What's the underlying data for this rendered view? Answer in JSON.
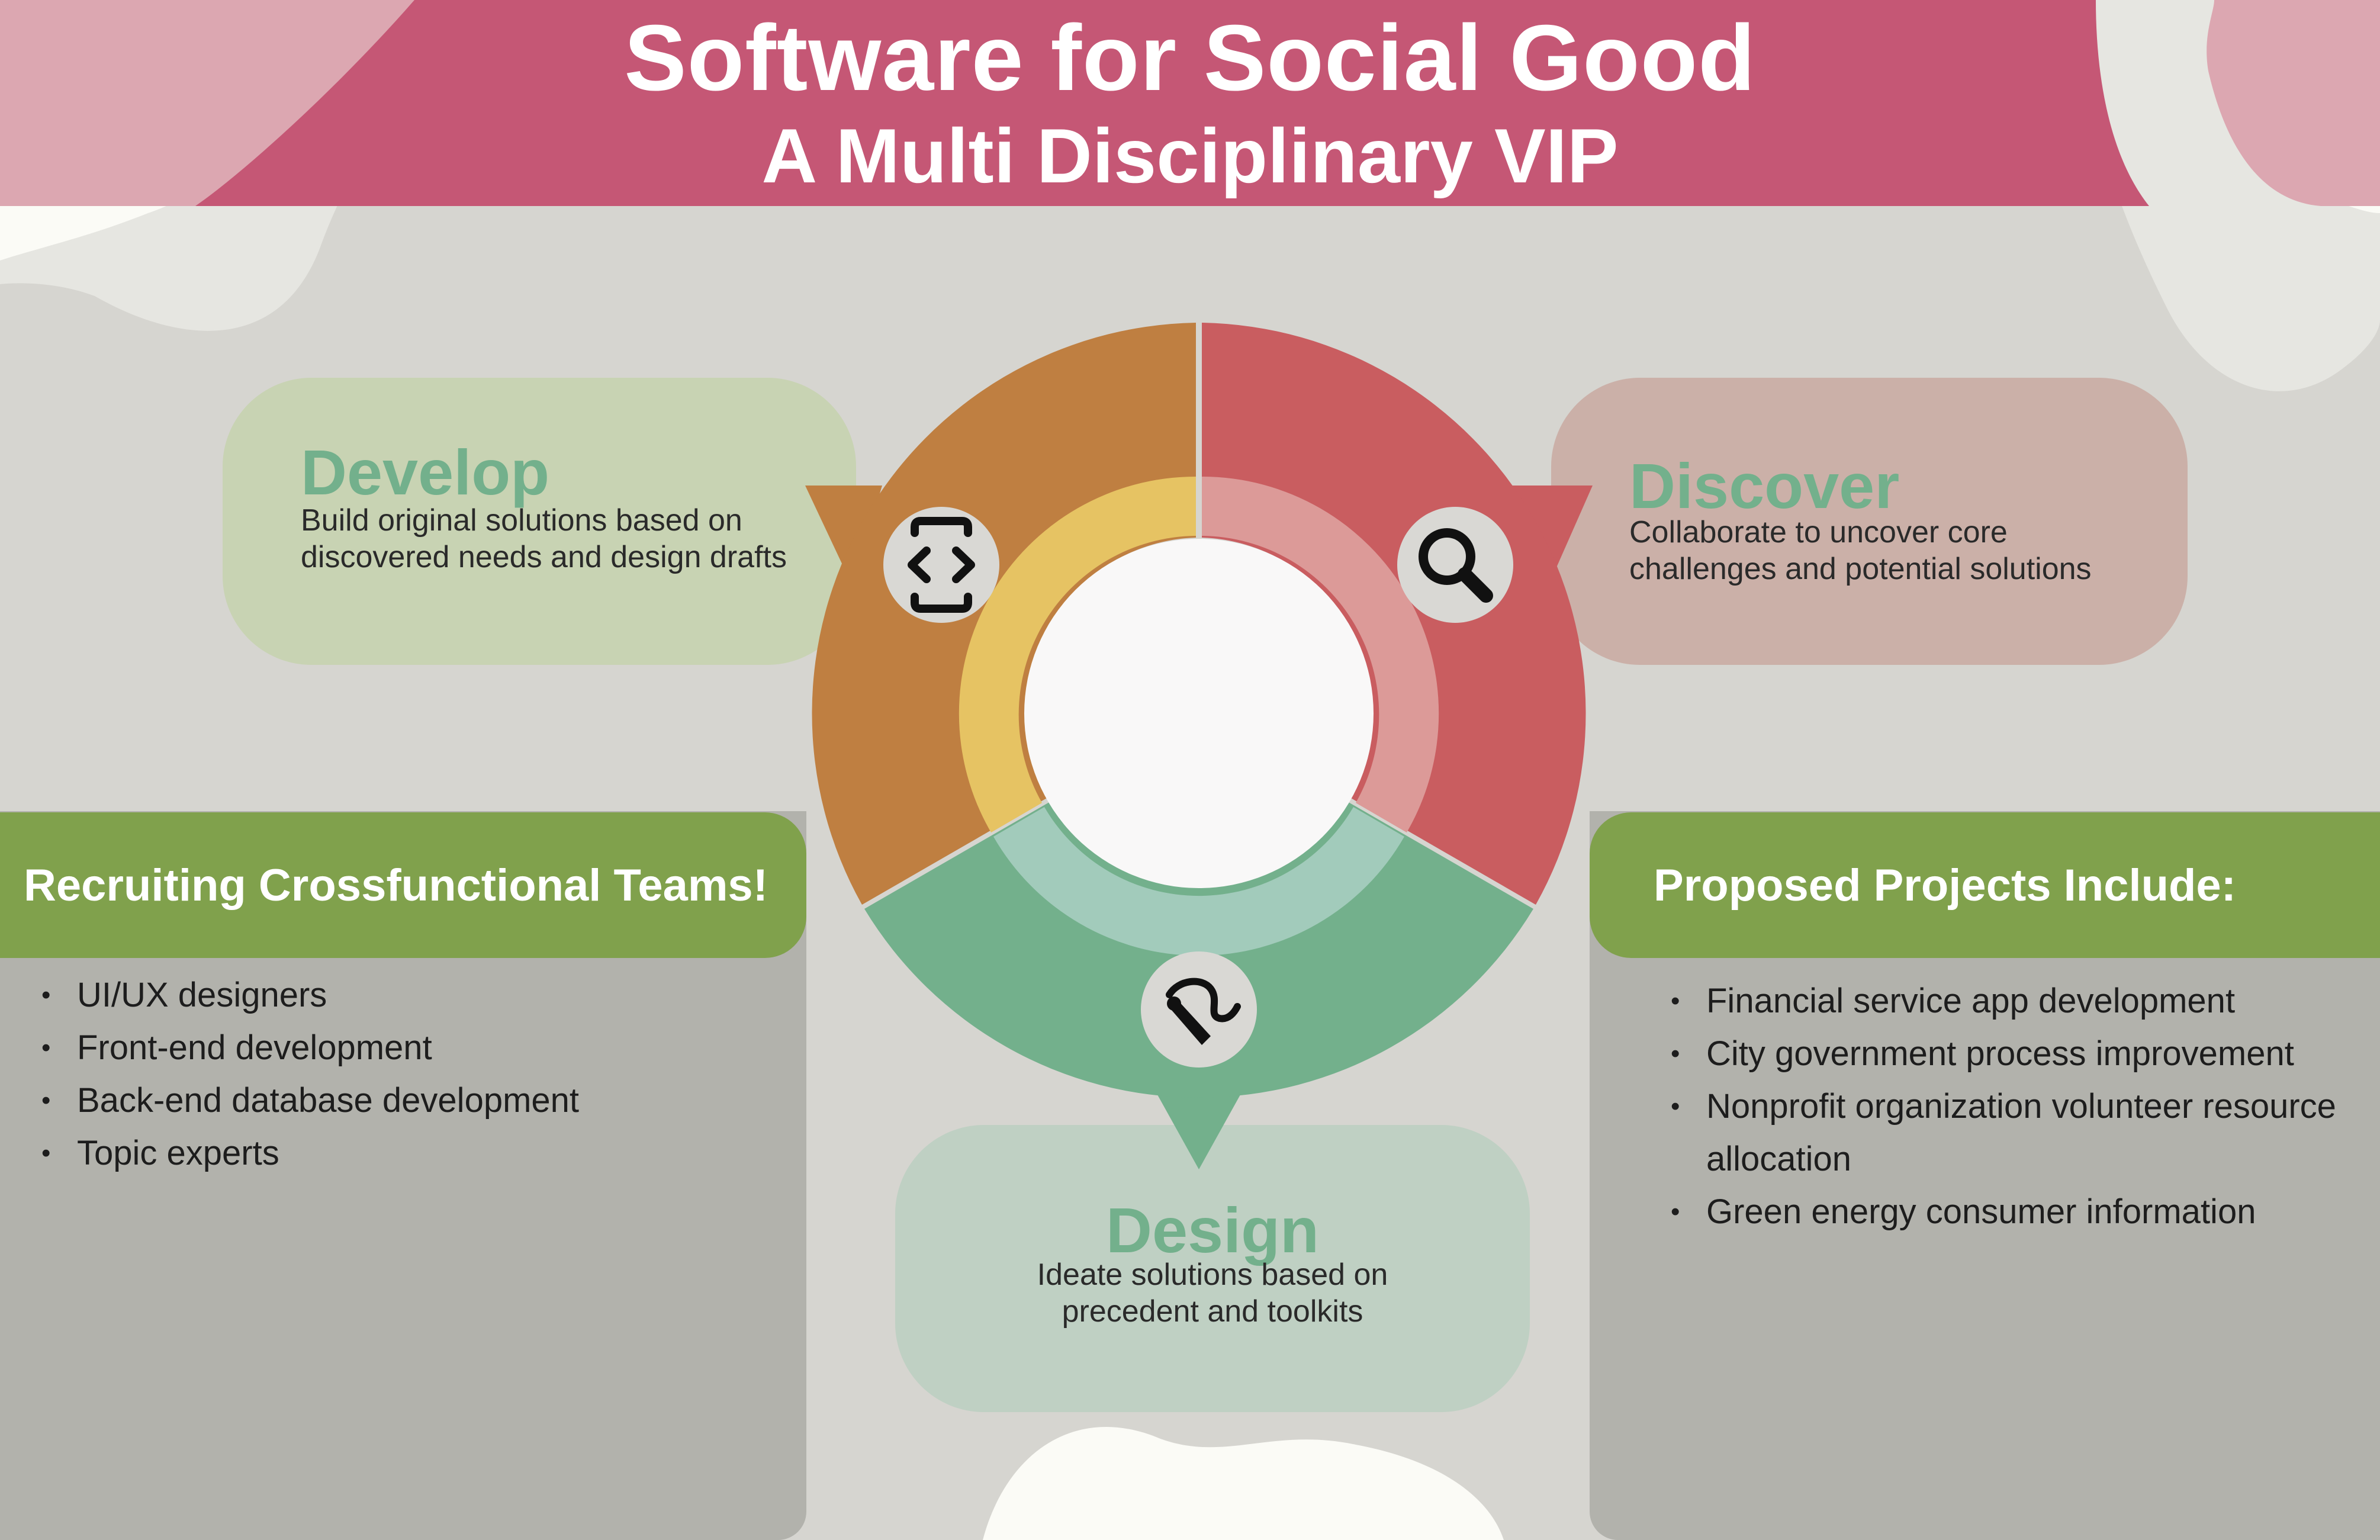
{
  "title": {
    "line1": "Software for Social Good",
    "line2": "A Multi Disciplinary VIP"
  },
  "colors": {
    "header": "#c55775",
    "background": "#d6d5d0",
    "develop": "#bf7f41",
    "develop_inner": "#e6c363",
    "discover": "#c95d60",
    "discover_inner": "#dc9a98",
    "design": "#73b08c",
    "design_inner": "#a2cbbb",
    "panel_header": "#80a14c",
    "title_text": "#73b08c"
  },
  "stages": {
    "develop": {
      "title": "Develop",
      "description_lines": [
        "Build original solutions based on",
        "discovered needs and design drafts"
      ],
      "icon": "code-brackets-icon"
    },
    "discover": {
      "title": "Discover",
      "description_lines": [
        "Collaborate to uncover core",
        "challenges and potential solutions"
      ],
      "icon": "search-icon"
    },
    "design": {
      "title": "Design",
      "description_lines": [
        "Ideate solutions based on",
        "precedent and toolkits"
      ],
      "icon": "pen-brush-icon"
    }
  },
  "recruiting": {
    "heading": "Recruiting Crossfunctional Teams!",
    "items": [
      "UI/UX designers",
      "Front-end development",
      "Back-end database development",
      "Topic experts"
    ]
  },
  "projects": {
    "heading": "Proposed Projects Include:",
    "items": [
      "Financial service app development",
      "City government process improvement",
      "Nonprofit organization volunteer resource allocation",
      "Green energy consumer information"
    ]
  }
}
